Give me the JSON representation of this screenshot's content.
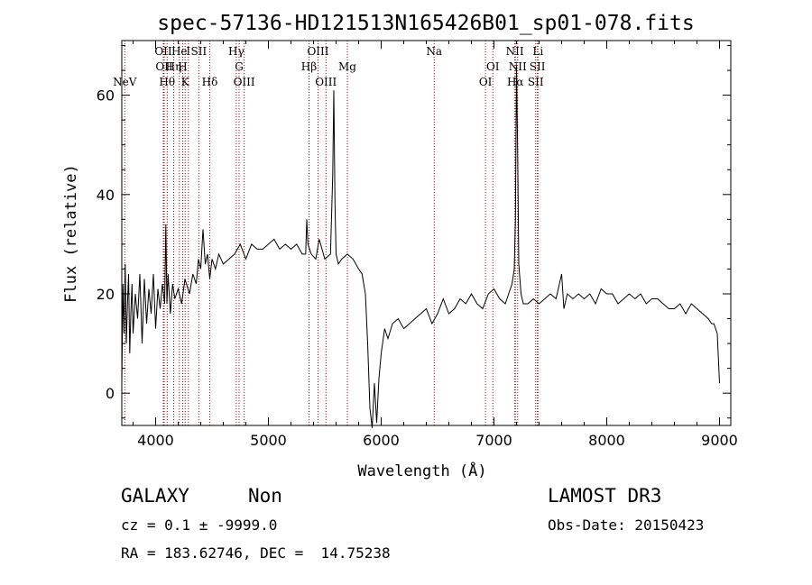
{
  "chart_data": {
    "type": "line",
    "title": "spec-57136-HD121513N165426B01_sp01-078.fits",
    "xlabel": "Wavelength (Å)",
    "ylabel": "Flux (relative)",
    "xlim": [
      3700,
      9100
    ],
    "ylim": [
      -6.5,
      71
    ],
    "xticks": [
      4000,
      5000,
      6000,
      7000,
      8000,
      9000
    ],
    "yticks": [
      0,
      20,
      40,
      60
    ],
    "xtick_labels": [
      "4000",
      "5000",
      "6000",
      "7000",
      "8000",
      "9000"
    ],
    "ytick_labels": [
      "0",
      "20",
      "40",
      "60"
    ],
    "grid": false,
    "series": [
      {
        "color": "#000000",
        "x": [
          3700,
          3710,
          3720,
          3730,
          3740,
          3750,
          3760,
          3770,
          3780,
          3790,
          3800,
          3820,
          3840,
          3860,
          3880,
          3900,
          3920,
          3940,
          3960,
          3980,
          4000,
          4020,
          4040,
          4060,
          4080,
          4090,
          4100,
          4110,
          4130,
          4150,
          4170,
          4200,
          4230,
          4260,
          4300,
          4330,
          4360,
          4380,
          4400,
          4420,
          4440,
          4460,
          4480,
          4500,
          4530,
          4560,
          4600,
          4650,
          4700,
          4750,
          4800,
          4850,
          4900,
          4950,
          5000,
          5050,
          5100,
          5150,
          5200,
          5250,
          5300,
          5330,
          5340,
          5350,
          5380,
          5420,
          5450,
          5500,
          5550,
          5570,
          5580,
          5590,
          5600,
          5620,
          5650,
          5700,
          5750,
          5800,
          5830,
          5860,
          5880,
          5900,
          5920,
          5940,
          5960,
          5980,
          6000,
          6030,
          6060,
          6100,
          6150,
          6200,
          6250,
          6300,
          6350,
          6400,
          6450,
          6500,
          6550,
          6600,
          6650,
          6700,
          6750,
          6800,
          6850,
          6900,
          6950,
          7000,
          7050,
          7100,
          7130,
          7160,
          7180,
          7190,
          7200,
          7210,
          7220,
          7240,
          7260,
          7300,
          7350,
          7400,
          7450,
          7500,
          7550,
          7600,
          7620,
          7650,
          7700,
          7750,
          7800,
          7850,
          7900,
          7950,
          8000,
          8050,
          8100,
          8150,
          8200,
          8250,
          8300,
          8350,
          8400,
          8450,
          8500,
          8550,
          8600,
          8650,
          8700,
          8750,
          8800,
          8850,
          8900,
          8930,
          8950,
          8980,
          9000
        ],
        "y": [
          2,
          22,
          12,
          26,
          10,
          18,
          24,
          8,
          16,
          22,
          12,
          20,
          15,
          24,
          10,
          23,
          14,
          21,
          16,
          24,
          13,
          21,
          17,
          22,
          18,
          34,
          18,
          24,
          16,
          22,
          19,
          21,
          18,
          23,
          20,
          24,
          22,
          27,
          25,
          33,
          26,
          28,
          23,
          27,
          25,
          28,
          26,
          27,
          28,
          30,
          27,
          30,
          29,
          29,
          30,
          31,
          29,
          30,
          29,
          30,
          28,
          28,
          35,
          30,
          28,
          27,
          31,
          27,
          28,
          44,
          61,
          38,
          28,
          26,
          27,
          28,
          27,
          25,
          24,
          20,
          10,
          -3,
          -7,
          2,
          -6,
          3,
          8,
          13,
          11,
          14,
          15,
          13,
          14,
          15,
          16,
          17,
          14,
          16,
          19,
          16,
          17,
          19,
          18,
          20,
          18,
          17,
          20,
          21,
          19,
          18,
          20,
          22,
          25,
          35,
          66,
          48,
          26,
          20,
          18,
          18,
          19,
          18,
          19,
          20,
          19,
          24,
          17,
          20,
          19,
          20,
          19,
          20,
          18,
          21,
          20,
          20,
          18,
          19,
          20,
          19,
          20,
          18,
          19,
          19,
          18,
          17,
          17,
          18,
          16,
          18,
          17,
          16,
          15,
          14,
          14,
          12,
          2
        ]
      }
    ],
    "emission_lines": [
      {
        "name": "NeV",
        "wavelength": 3726,
        "row": 3
      },
      {
        "name": "OII",
        "wavelength": 4068,
        "row": 0
      },
      {
        "name": "OII",
        "wavelength": 4076,
        "row": 1
      },
      {
        "name": "Hθ",
        "wavelength": 4102,
        "row": 3
      },
      {
        "name": "Hη",
        "wavelength": 4160,
        "row": 1
      },
      {
        "name": "He",
        "wavelength": 4210,
        "row": 0
      },
      {
        "name": "H",
        "wavelength": 4240,
        "row": 1
      },
      {
        "name": "K",
        "wavelength": 4262,
        "row": 3
      },
      {
        "name": "I",
        "wavelength": 4290,
        "row": 0
      },
      {
        "name": "SII",
        "wavelength": 4383,
        "row": 0
      },
      {
        "name": "Hδ",
        "wavelength": 4480,
        "row": 3
      },
      {
        "name": "Hγ",
        "wavelength": 4715,
        "row": 0
      },
      {
        "name": "G",
        "wavelength": 4740,
        "row": 1
      },
      {
        "name": "OIII",
        "wavelength": 4785,
        "row": 3
      },
      {
        "name": "OIII",
        "wavelength": 5440,
        "row": 0
      },
      {
        "name": "Hβ",
        "wavelength": 5360,
        "row": 2
      },
      {
        "name": "OIII",
        "wavelength": 5510,
        "row": 3
      },
      {
        "name": "Mg",
        "wavelength": 5700,
        "row": 2
      },
      {
        "name": "Na",
        "wavelength": 6470,
        "row": 0
      },
      {
        "name": "OI",
        "wavelength": 6990,
        "row": 1
      },
      {
        "name": "OI",
        "wavelength": 6925,
        "row": 3
      },
      {
        "name": "NII",
        "wavelength": 7185,
        "row": 0
      },
      {
        "name": "NII",
        "wavelength": 7210,
        "row": 1
      },
      {
        "name": "Hα",
        "wavelength": 7190,
        "row": 3
      },
      {
        "name": "SII",
        "wavelength": 7370,
        "row": 3
      },
      {
        "name": "SII",
        "wavelength": 7385,
        "row": 1
      },
      {
        "name": "Li",
        "wavelength": 7390,
        "row": 0
      }
    ]
  },
  "info": {
    "class_label": "GALAXY",
    "subclass_label": "Non",
    "survey_label": "LAMOST DR3",
    "cz_line": "cz = 0.1 ± -9999.0",
    "obs_date_line": "Obs-Date: 20150423",
    "coord_line": "RA = 183.62746, DEC =  14.75238"
  }
}
